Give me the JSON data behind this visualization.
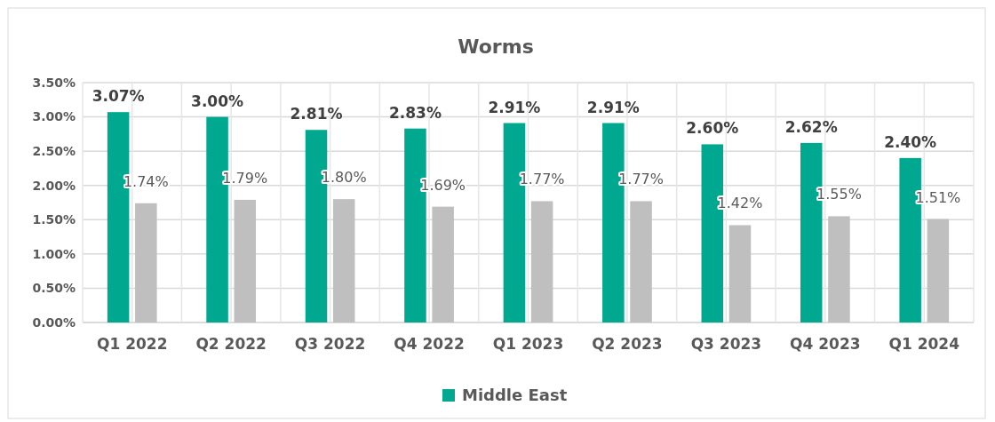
{
  "chart_data": {
    "type": "bar",
    "title": "Worms",
    "categories": [
      "Q1 2022",
      "Q2 2022",
      "Q3 2022",
      "Q4 2022",
      "Q1 2023",
      "Q2 2023",
      "Q3 2023",
      "Q4 2023",
      "Q1 2024"
    ],
    "series": [
      {
        "name": "Middle East",
        "color": "#00a88f",
        "values": [
          3.07,
          3.0,
          2.81,
          2.83,
          2.91,
          2.91,
          2.6,
          2.62,
          2.4
        ],
        "value_labels": [
          "3.07%",
          "3.00%",
          "2.81%",
          "2.83%",
          "2.91%",
          "2.91%",
          "2.60%",
          "2.62%",
          "2.40%"
        ]
      },
      {
        "color": "#bfbfbf",
        "values": [
          1.74,
          1.79,
          1.8,
          1.69,
          1.77,
          1.77,
          1.42,
          1.55,
          1.51
        ],
        "value_labels": [
          "1.74%",
          "1.79%",
          "1.80%",
          "1.69%",
          "1.77%",
          "1.77%",
          "1.42%",
          "1.55%",
          "1.51%"
        ]
      }
    ],
    "ylim": [
      0,
      3.5
    ],
    "yticks": [
      {
        "value": 0,
        "label": "0.00%"
      },
      {
        "value": 0.5,
        "label": "0.50%"
      },
      {
        "value": 1,
        "label": "1.00%"
      },
      {
        "value": 1.5,
        "label": "1.50%"
      },
      {
        "value": 2,
        "label": "2.00%"
      },
      {
        "value": 2.5,
        "label": "2.50%"
      },
      {
        "value": 3,
        "label": "3.00%"
      },
      {
        "value": 3.5,
        "label": "3.50%"
      }
    ],
    "grid": true,
    "legend": "bottom"
  }
}
